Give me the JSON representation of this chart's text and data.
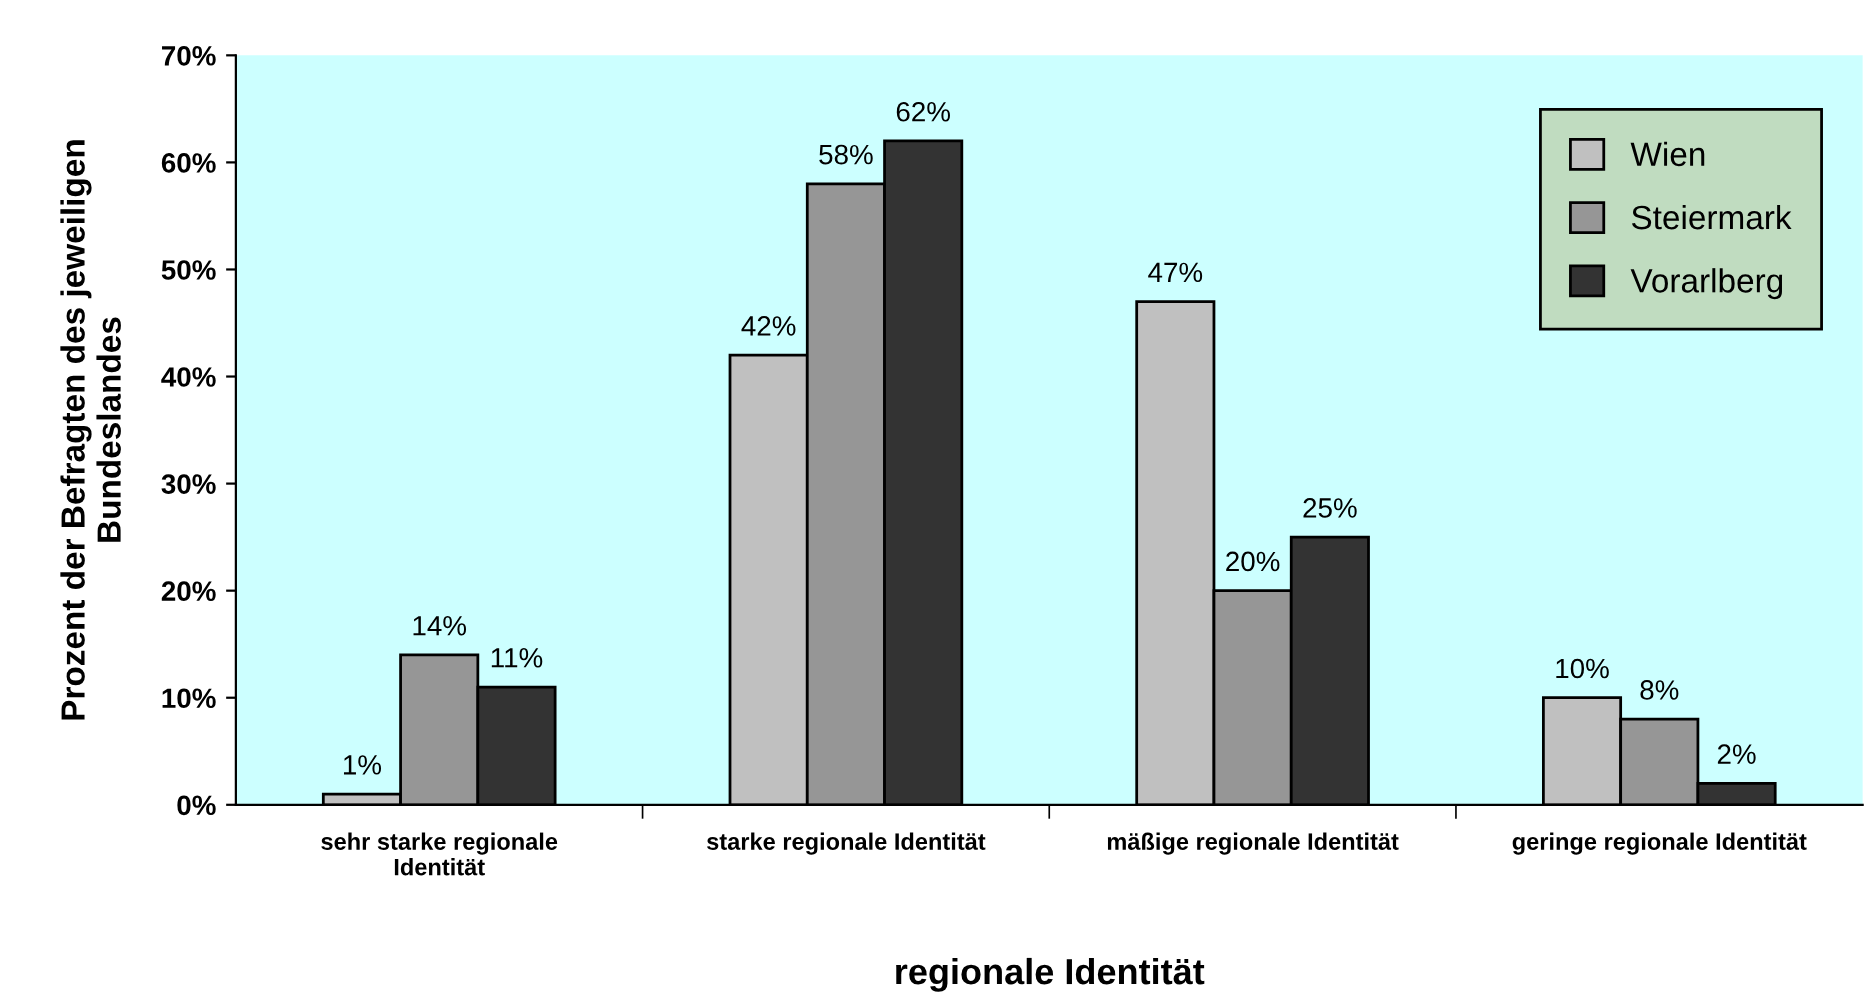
{
  "chart_data": {
    "type": "bar",
    "xlabel": "regionale Identität",
    "ylabel": "Prozent der Befragten des jeweiligen\nBundeslandes",
    "categories": [
      "sehr starke regionale\nIdentität",
      "starke regionale Identität",
      "mäßige regionale Identität",
      "geringe regionale Identität"
    ],
    "series": [
      {
        "name": "Wien",
        "color": "#c0c0c0",
        "values": [
          1,
          42,
          47,
          10
        ],
        "value_labels": [
          "1%",
          "42%",
          "47%",
          "10%"
        ]
      },
      {
        "name": "Steiermark",
        "color": "#969696",
        "values": [
          14,
          58,
          20,
          8
        ],
        "value_labels": [
          "14%",
          "58%",
          "20%",
          "8%"
        ]
      },
      {
        "name": "Vorarlberg",
        "color": "#333333",
        "values": [
          11,
          62,
          25,
          2
        ],
        "value_labels": [
          "11%",
          "62%",
          "25%",
          "2%"
        ]
      }
    ],
    "ylim": [
      0,
      70
    ],
    "yticks": [
      {
        "value": 0,
        "label": "0%"
      },
      {
        "value": 10,
        "label": "10%"
      },
      {
        "value": 20,
        "label": "20%"
      },
      {
        "value": 30,
        "label": "30%"
      },
      {
        "value": 40,
        "label": "40%"
      },
      {
        "value": 50,
        "label": "50%"
      },
      {
        "value": 60,
        "label": "60%"
      },
      {
        "value": 70,
        "label": "70%"
      }
    ],
    "grid": false,
    "legend": "top right"
  }
}
